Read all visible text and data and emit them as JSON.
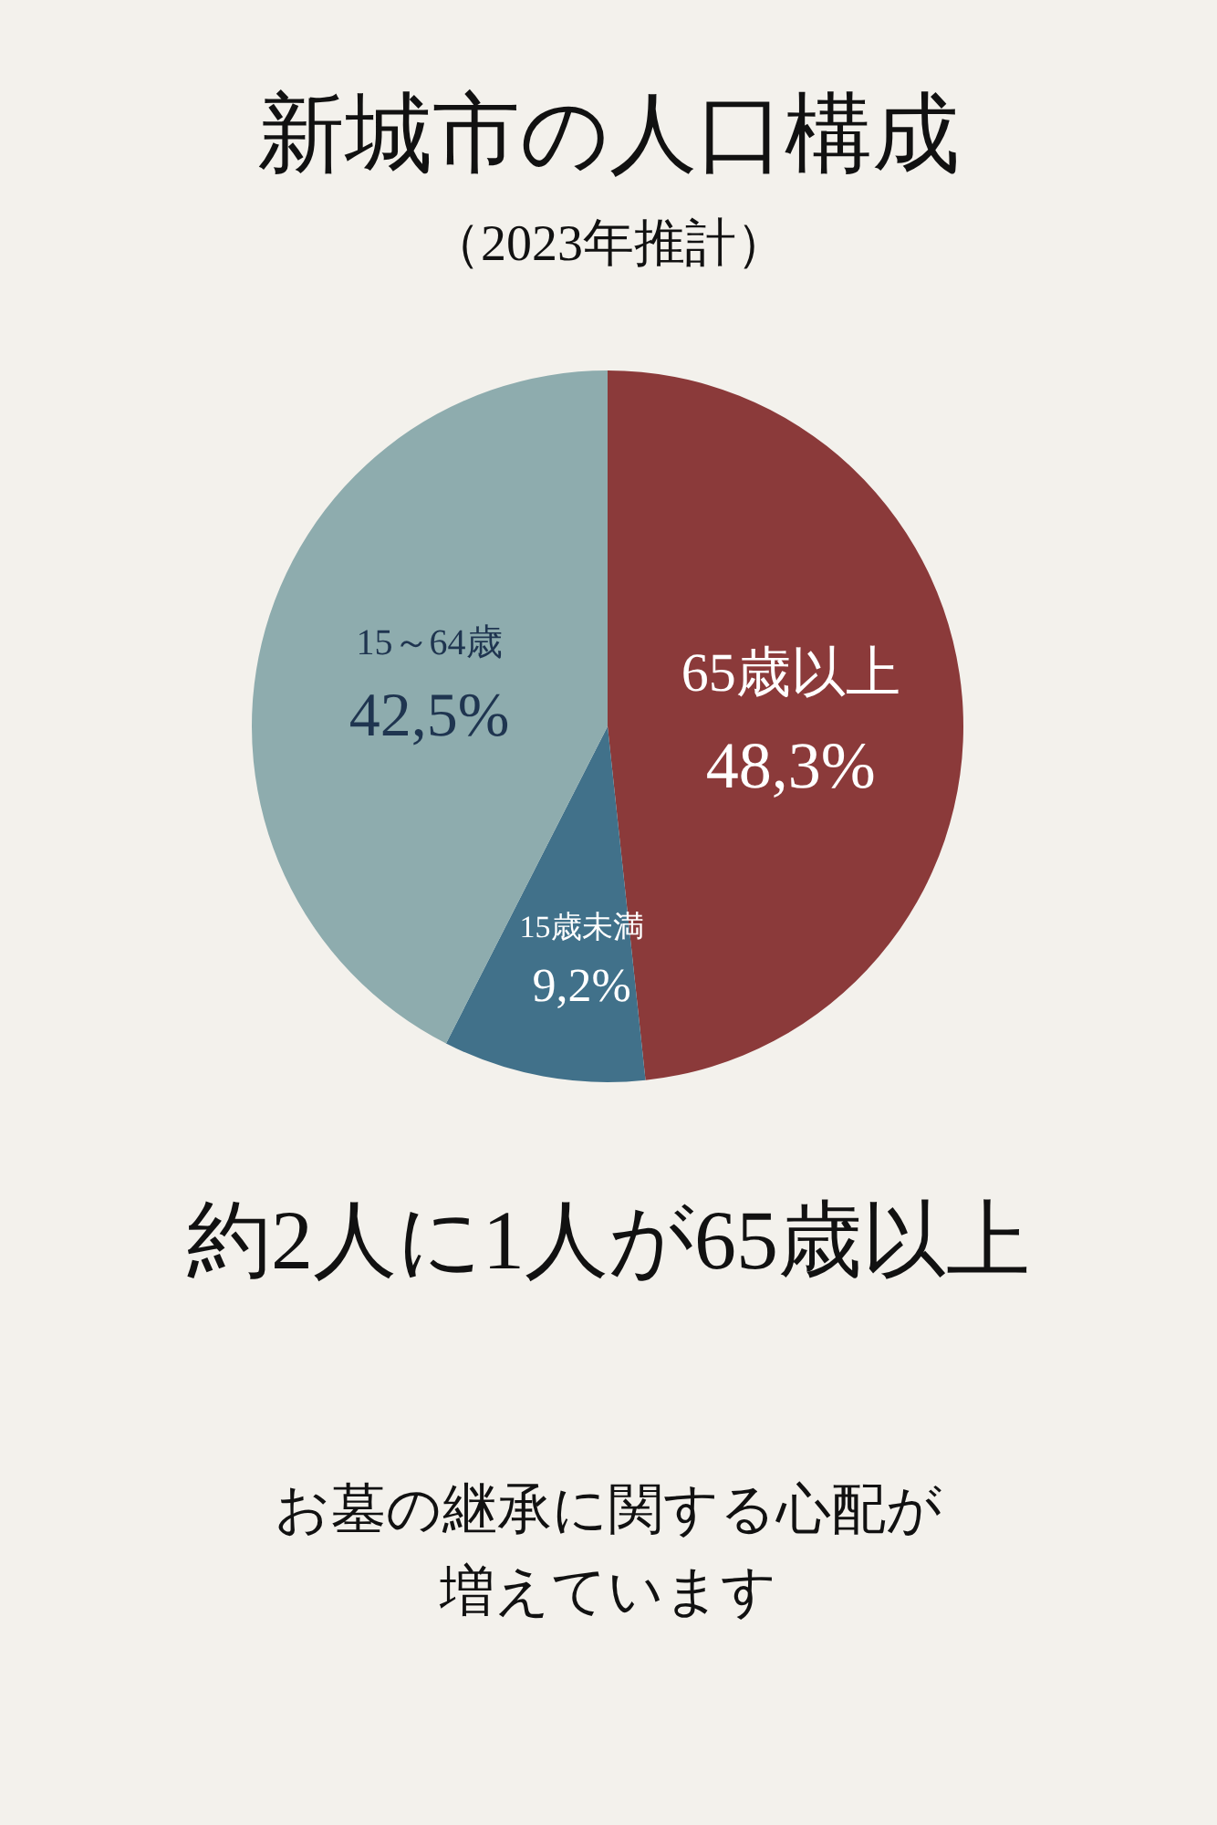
{
  "chart_data": {
    "type": "pie",
    "title": "新城市の人口構成",
    "subtitle": "（2023年推計）",
    "categories": [
      "65歳以上",
      "15歳未満",
      "15～64歳"
    ],
    "values": [
      48.3,
      9.2,
      42.5
    ],
    "value_labels": [
      "48,3%",
      "9,2%",
      "42,5%"
    ],
    "colors": [
      "#8b3a3a",
      "#41718a",
      "#8eacae"
    ],
    "annotations": [
      "約2人に1人が65歳以上",
      "お墓の継承に関する心配が",
      "増えています"
    ]
  }
}
